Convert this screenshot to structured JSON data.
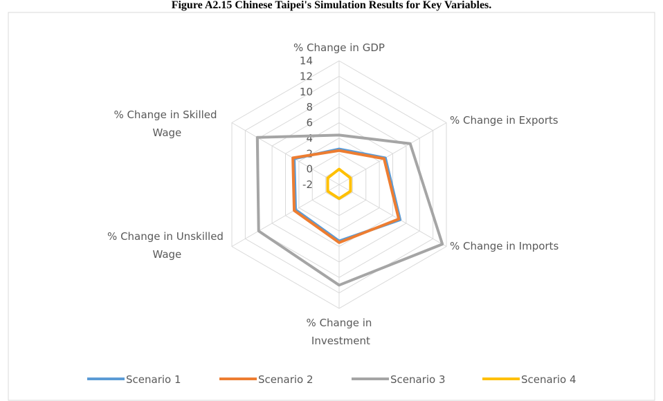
{
  "chart_data": {
    "type": "radar",
    "title": "Figure A2.15 Chinese Taipei's Simulation Results for Key Variables.",
    "categories": [
      "% Change in GDP",
      "% Change in Exports",
      "% Change in Imports",
      "% Change in Investment",
      "% Change in Unskilled Wage",
      "% Change in Skilled Wage"
    ],
    "series": [
      {
        "name": "Scenario 1",
        "color": "#5b9bd5",
        "values": [
          2.6,
          4.9,
          7.1,
          5.3,
          4.5,
          4.7
        ]
      },
      {
        "name": "Scenario 2",
        "color": "#ed7d31",
        "values": [
          2.4,
          4.7,
          6.9,
          5.5,
          4.7,
          4.9
        ]
      },
      {
        "name": "Scenario 3",
        "color": "#a5a5a5",
        "values": [
          4.4,
          8.6,
          13.4,
          11,
          10,
          10.2
        ]
      },
      {
        "name": "Scenario 4",
        "color": "#ffc000",
        "values": [
          0,
          -0.3,
          -0.3,
          -0.2,
          -0.3,
          -0.3
        ]
      }
    ],
    "ylim": [
      -2,
      14
    ],
    "yticks": [
      -2,
      0,
      2,
      4,
      6,
      8,
      10,
      12,
      14
    ],
    "grid": true,
    "legend": "bottom"
  }
}
